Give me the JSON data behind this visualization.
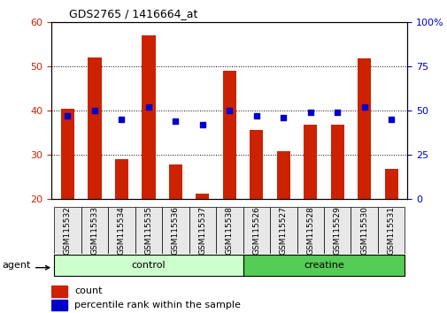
{
  "title": "GDS2765 / 1416664_at",
  "samples": [
    "GSM115532",
    "GSM115533",
    "GSM115534",
    "GSM115535",
    "GSM115536",
    "GSM115537",
    "GSM115538",
    "GSM115526",
    "GSM115527",
    "GSM115528",
    "GSM115529",
    "GSM115530",
    "GSM115531"
  ],
  "counts": [
    40.3,
    52.0,
    29.0,
    57.0,
    27.8,
    21.2,
    49.0,
    35.5,
    30.8,
    36.8,
    36.7,
    51.8,
    26.7
  ],
  "percentiles": [
    47,
    50,
    45,
    52,
    44,
    42,
    50,
    47,
    46,
    49,
    49,
    52,
    45
  ],
  "bar_color": "#cc2200",
  "square_color": "#0000cc",
  "ylim_left": [
    20,
    60
  ],
  "ylim_right": [
    0,
    100
  ],
  "yticks_left": [
    20,
    30,
    40,
    50,
    60
  ],
  "yticks_right": [
    0,
    25,
    50,
    75,
    100
  ],
  "ytick_labels_right": [
    "0",
    "25",
    "50",
    "75",
    "100%"
  ],
  "num_control": 7,
  "num_creatine": 6,
  "control_color": "#ccffcc",
  "creatine_color": "#55cc55",
  "bar_width": 0.5,
  "agent_label": "agent",
  "control_label": "control",
  "creatine_label": "creatine",
  "legend_count": "count",
  "legend_pct": "percentile rank within the sample",
  "xlabel_color_left": "#cc2200",
  "xlabel_color_right": "#0000cc"
}
